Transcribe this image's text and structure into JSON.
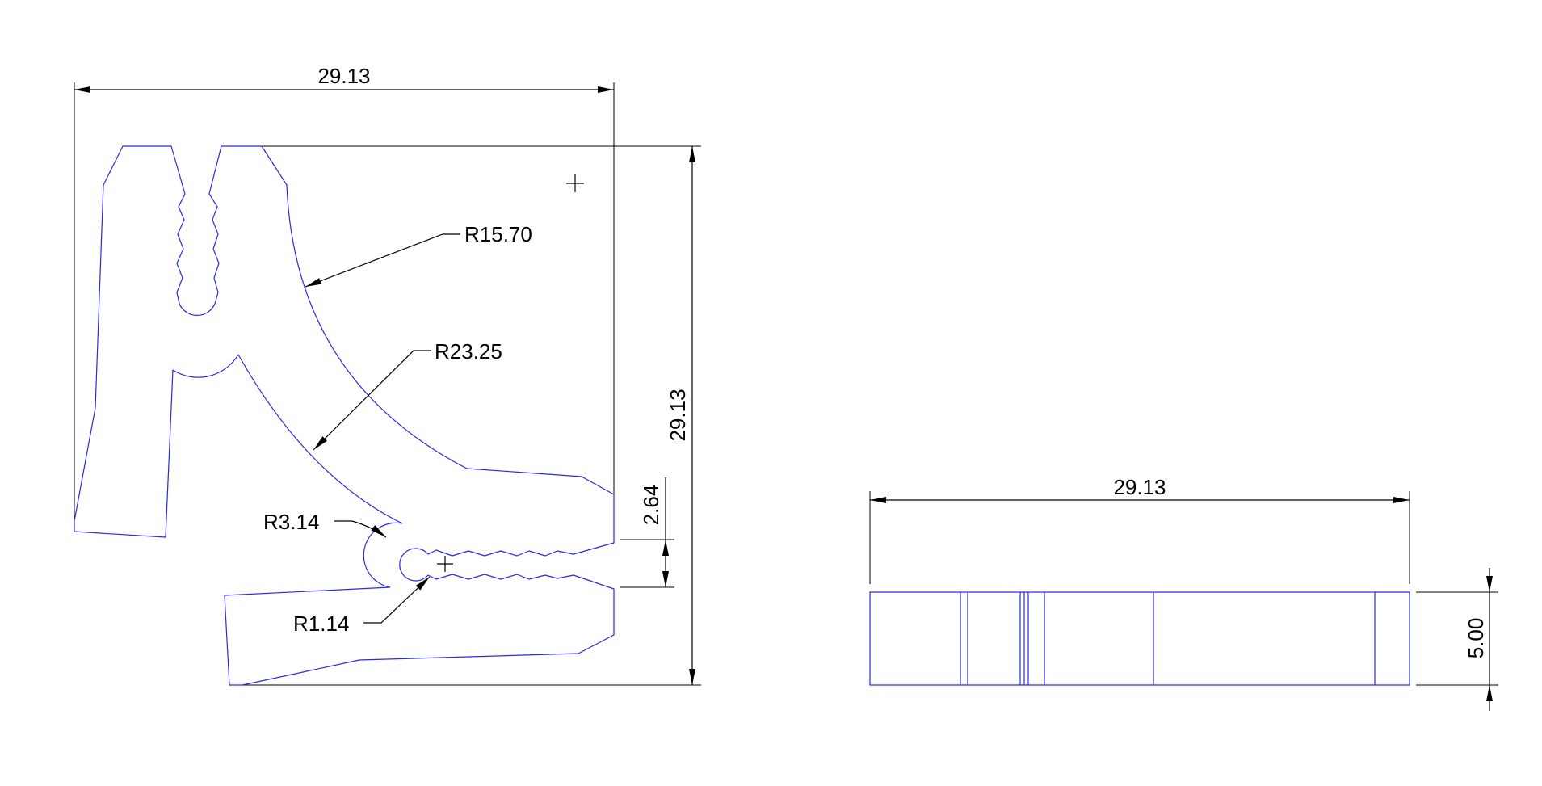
{
  "colors": {
    "geometry": "#2a2ae0",
    "dimension": "#000000",
    "background": "#ffffff"
  },
  "top_view": {
    "width_dim": "29.13",
    "height_dim": "29.13",
    "gap_dim": "2.64",
    "radius_outer": "R23.25",
    "radius_inner": "R15.70",
    "radius_notch": "R3.14",
    "radius_hole": "R1.14"
  },
  "side_view": {
    "width_dim": "29.13",
    "thickness_dim": "5.00"
  }
}
